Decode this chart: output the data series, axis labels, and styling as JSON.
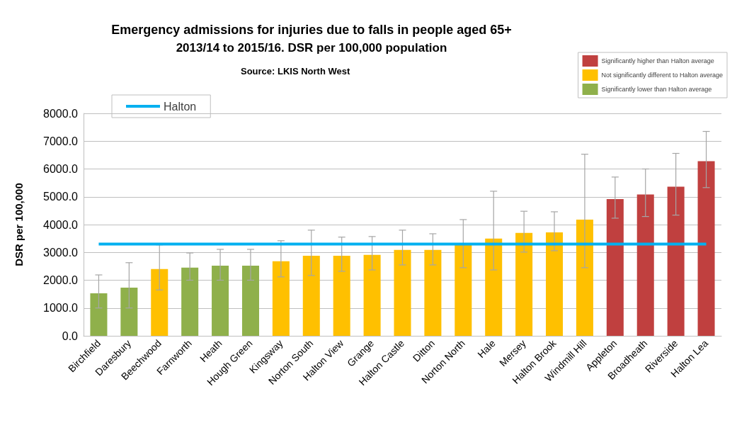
{
  "chart_data": {
    "type": "bar",
    "title": "Emergency admissions for injuries due to falls in people aged 65+",
    "subtitle": "2013/14 to 2015/16. DSR per 100,000 population",
    "annotations": [
      "Source: LKIS North West"
    ],
    "ylabel": "DSR per 100,000",
    "categories": [
      "Birchfield",
      "Daresbury",
      "Beechwood",
      "Farnworth",
      "Heath",
      "Hough Green",
      "Kingsway",
      "Norton South",
      "Halton View",
      "Grange",
      "Halton Castle",
      "Ditton",
      "Norton North",
      "Hale",
      "Mersey",
      "Halton Brook",
      "Windmill Hill",
      "Appleton",
      "Broadheath",
      "Riverside",
      "Halton Lea"
    ],
    "series": [
      {
        "name": "Significantly higher than Halton average",
        "color": "#c0403f",
        "values": [
          null,
          null,
          null,
          null,
          null,
          null,
          null,
          null,
          null,
          null,
          null,
          null,
          null,
          null,
          null,
          null,
          null,
          4920,
          5080,
          5360,
          6280
        ],
        "errors": [
          null,
          null,
          null,
          null,
          null,
          null,
          null,
          null,
          null,
          null,
          null,
          null,
          null,
          null,
          null,
          null,
          null,
          [
            4230,
            5710
          ],
          [
            4290,
            6000
          ],
          [
            4340,
            6560
          ],
          [
            5330,
            7350
          ]
        ]
      },
      {
        "name": "Not significantly different to Halton average",
        "color": "#ffc000",
        "values": [
          null,
          null,
          2400,
          null,
          null,
          null,
          2680,
          2880,
          2880,
          2910,
          3090,
          3090,
          3290,
          3500,
          3700,
          3720,
          4180,
          null,
          null,
          null,
          null
        ],
        "errors": [
          null,
          null,
          [
            1650,
            3270
          ],
          null,
          null,
          null,
          [
            2120,
            3420
          ],
          [
            2170,
            3800
          ],
          [
            2320,
            3550
          ],
          [
            2370,
            3570
          ],
          [
            2550,
            3800
          ],
          [
            2550,
            3670
          ],
          [
            2450,
            4180
          ],
          [
            2370,
            5200
          ],
          [
            3010,
            4480
          ],
          [
            3060,
            4460
          ],
          [
            2450,
            6530
          ],
          null,
          null,
          null,
          null
        ]
      },
      {
        "name": "Significantly lower than Halton average",
        "color": "#8fb04b",
        "values": [
          1530,
          1730,
          null,
          2450,
          2520,
          2520,
          null,
          null,
          null,
          null,
          null,
          null,
          null,
          null,
          null,
          null,
          null,
          null,
          null,
          null,
          null
        ],
        "errors": [
          [
            1000,
            2190
          ],
          [
            1000,
            2630
          ],
          null,
          [
            2000,
            2980
          ],
          [
            2000,
            3110
          ],
          [
            2000,
            3110
          ],
          null,
          null,
          null,
          null,
          null,
          null,
          null,
          null,
          null,
          null,
          null,
          null,
          null,
          null,
          null
        ]
      },
      {
        "name": "Halton",
        "type": "line",
        "color": "#00b0f0",
        "values": [
          3300,
          3300,
          3300,
          3300,
          3300,
          3300,
          3300,
          3300,
          3300,
          3300,
          3300,
          3300,
          3300,
          3300,
          3300,
          3300,
          3300,
          3300,
          3300,
          3300,
          3300
        ]
      }
    ],
    "marker": "none",
    "ylim": [
      0,
      8000
    ],
    "yticks": [
      {
        "value": 0,
        "label": "0.0"
      },
      {
        "value": 1000,
        "label": "1000.0"
      },
      {
        "value": 2000,
        "label": "2000.0"
      },
      {
        "value": 3000,
        "label": "3000.0"
      },
      {
        "value": 4000,
        "label": "4000.0"
      },
      {
        "value": 5000,
        "label": "5000.0"
      },
      {
        "value": 6000,
        "label": "6000.0"
      },
      {
        "value": 7000,
        "label": "7000.0"
      },
      {
        "value": 8000,
        "label": "8000.0"
      }
    ],
    "grid": "y",
    "legend": "top"
  }
}
